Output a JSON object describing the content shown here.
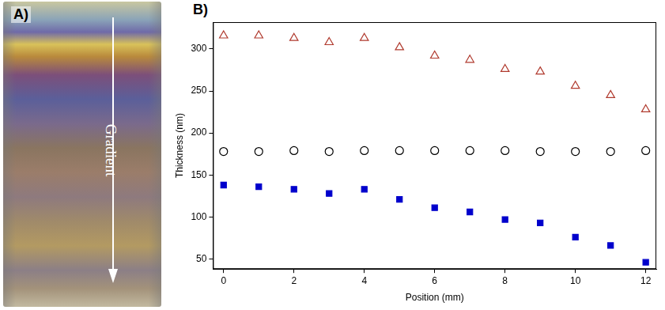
{
  "panels": {
    "A": {
      "label": "A)",
      "annotation": "Gradient"
    },
    "B": {
      "label": "B)"
    }
  },
  "chart_data": {
    "type": "scatter",
    "x_label": "Position (mm)",
    "y_label": "Thickness (nm)",
    "x": [
      0,
      1,
      2,
      3,
      4,
      5,
      6,
      7,
      8,
      9,
      10,
      11,
      12
    ],
    "series": [
      {
        "color": "#b03a2e",
        "marker": "triangle-open",
        "values": [
          316,
          316,
          313,
          308,
          313,
          302,
          292,
          287,
          276,
          273,
          256,
          245,
          228
        ]
      },
      {
        "color": "#000000",
        "marker": "circle-open",
        "values": [
          178,
          178,
          179,
          178,
          179,
          179,
          179,
          179,
          179,
          178,
          178,
          178,
          179
        ]
      },
      {
        "color": "#0000cc",
        "marker": "square",
        "values": [
          138,
          136,
          133,
          128,
          133,
          121,
          111,
          106,
          97,
          93,
          76,
          66,
          46
        ]
      }
    ],
    "xlim": [
      -0.3,
      12.3
    ],
    "xticks": [
      0,
      2,
      4,
      6,
      8,
      10,
      12
    ],
    "ylim": [
      38,
      332
    ],
    "yticks": [
      50,
      100,
      150,
      200,
      250,
      300
    ],
    "grid": false
  }
}
